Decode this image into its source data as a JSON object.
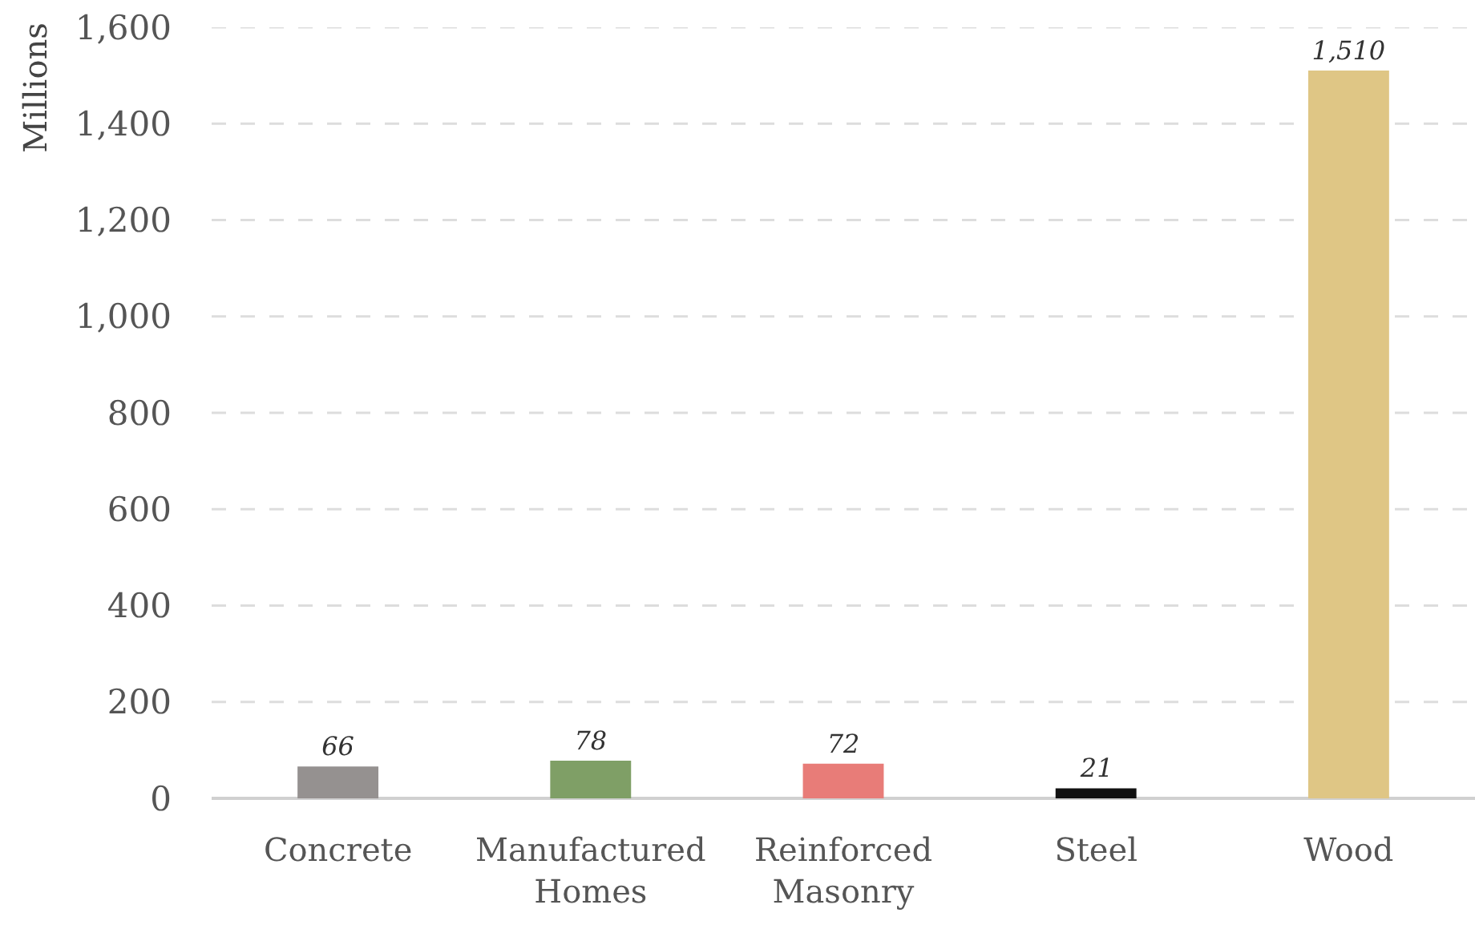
{
  "chart_data": {
    "type": "bar",
    "ylabel": "Millions",
    "categories": [
      "Concrete",
      "Manufactured\nHomes",
      "Reinforced\nMasonry",
      "Steel",
      "Wood"
    ],
    "values": [
      66,
      78,
      72,
      21,
      1510
    ],
    "colors": [
      "#959190",
      "#7f9f66",
      "#e87c78",
      "#111111",
      "#dfc685"
    ],
    "value_labels": [
      "66",
      "78",
      "72",
      "21",
      "1,510"
    ],
    "ylim": [
      0,
      1600
    ],
    "yticks": [
      0,
      200,
      400,
      600,
      800,
      {
        "value": 1000,
        "label": "1,000"
      },
      {
        "value": 1200,
        "label": "1,200"
      },
      {
        "value": 1400,
        "label": "1,400"
      },
      {
        "value": 1600,
        "label": "1,600"
      }
    ],
    "grid": "y"
  }
}
